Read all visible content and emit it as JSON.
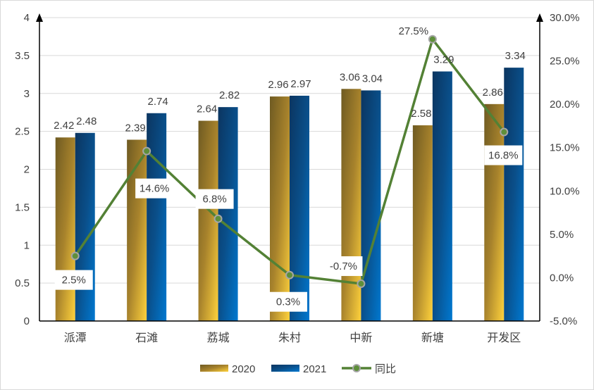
{
  "chart_data": {
    "type": "bar+line",
    "categories": [
      "派潭",
      "石滩",
      "荔城",
      "朱村",
      "中新",
      "新塘",
      "开发区"
    ],
    "series": [
      {
        "name": "2020",
        "type": "bar",
        "axis": "left",
        "values": [
          2.42,
          2.39,
          2.64,
          2.96,
          3.06,
          2.58,
          2.86
        ],
        "labels": [
          "2.42",
          "2.39",
          "2.64",
          "2.96",
          "3.06",
          "2.58",
          "2.86"
        ]
      },
      {
        "name": "2021",
        "type": "bar",
        "axis": "left",
        "values": [
          2.48,
          2.74,
          2.82,
          2.97,
          3.04,
          3.29,
          3.34
        ],
        "labels": [
          "2.48",
          "2.74",
          "2.82",
          "2.97",
          "3.04",
          "3.29",
          "3.34"
        ]
      },
      {
        "name": "同比",
        "type": "line",
        "axis": "right",
        "values": [
          2.5,
          14.6,
          6.8,
          0.3,
          -0.7,
          27.5,
          16.8
        ],
        "labels": [
          "2.5%",
          "14.6%",
          "6.8%",
          "0.3%",
          "-0.7%",
          "27.5%",
          "16.8%"
        ]
      }
    ],
    "left_axis": {
      "ylim": [
        0,
        4
      ],
      "ticks": [
        "0",
        "0.5",
        "1",
        "1.5",
        "2",
        "2.5",
        "3",
        "3.5",
        "4"
      ]
    },
    "right_axis": {
      "ylim": [
        -5,
        30
      ],
      "ticks": [
        "-5.0%",
        "0.0%",
        "5.0%",
        "10.0%",
        "15.0%",
        "20.0%",
        "25.0%",
        "30.0%"
      ]
    },
    "grid": true,
    "legend": "bottom",
    "colors": {
      "2020": "#b8912a",
      "2021": "#005a9e",
      "line": "#538135",
      "marker": "#5e8f3a"
    }
  }
}
